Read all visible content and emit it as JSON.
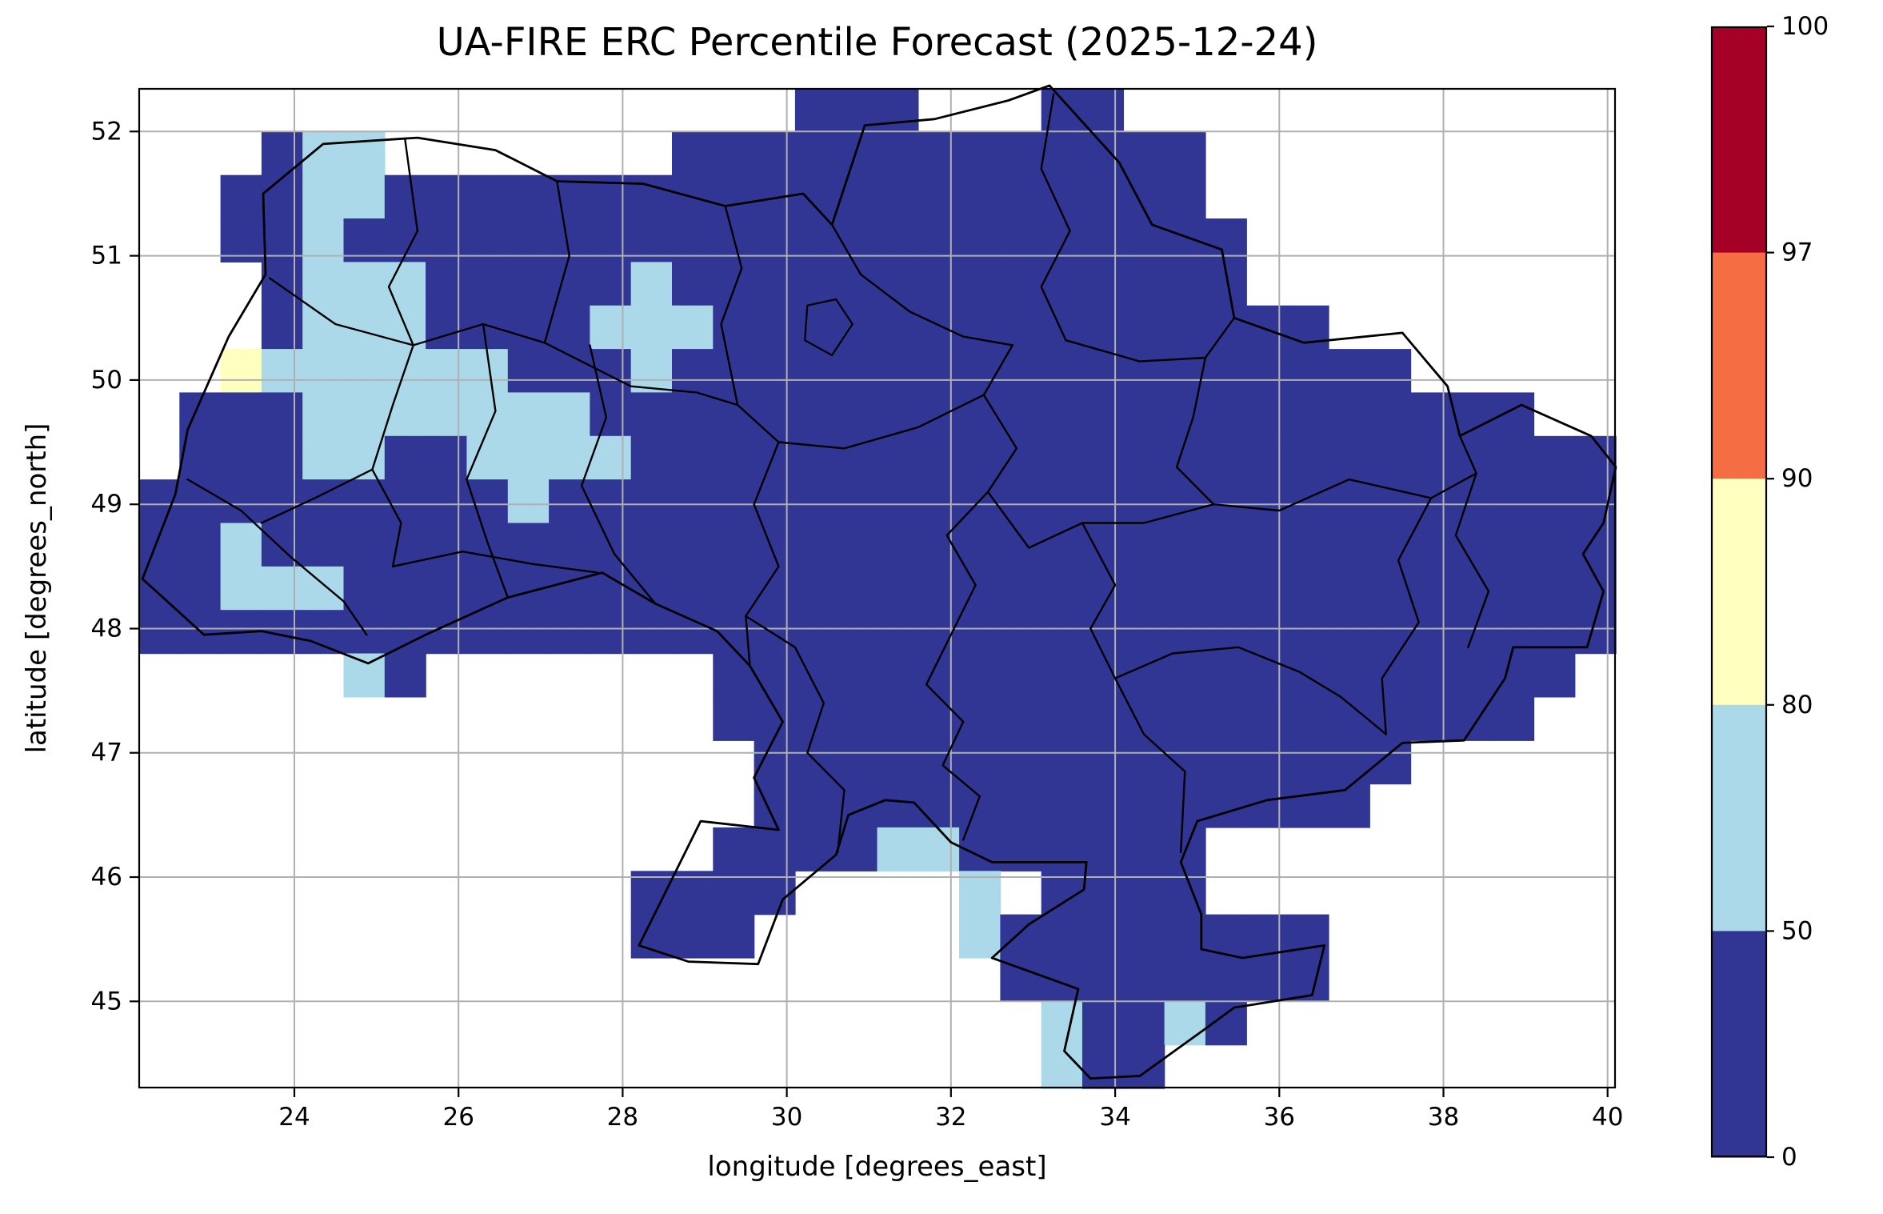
{
  "chart_data": {
    "type": "heatmap",
    "title": "UA-FIRE ERC Percentile Forecast (2025-12-24)",
    "xlabel": "longitude [degrees_east]",
    "ylabel": "latitude [degrees_north]",
    "xlim": [
      22.1,
      40.1
    ],
    "ylim": [
      44.3,
      52.35
    ],
    "xticks": [
      24,
      26,
      28,
      30,
      32,
      34,
      36,
      38,
      40
    ],
    "yticks": [
      45,
      46,
      47,
      48,
      49,
      50,
      51,
      52
    ],
    "grid": true,
    "grid_color": "#b0b0b0",
    "background": "#ffffff",
    "colorbar": {
      "boundaries": [
        0,
        50,
        80,
        90,
        97,
        100
      ],
      "tick_labels_top_to_bottom": [
        "100",
        "97",
        "90",
        "80",
        "50",
        "0"
      ],
      "segment_colors_top_to_bottom": [
        "#a50026",
        "#f46d43",
        "#ffffbf",
        "#abd9e9",
        "#313695"
      ]
    },
    "value_bins": {
      "B": "0-50 percentile",
      "L": "50-80 percentile",
      "Y": "80-90 percentile"
    },
    "bin_colors": {
      "B": "#313695",
      "L": "#abd9e9",
      "Y": "#ffffbf"
    },
    "grid_def": {
      "lon_min": 22.1,
      "lon_step": 0.5,
      "ncols": 36,
      "lat_max": 52.35,
      "lat_step": 0.35,
      "nrows": 23,
      "no_data_char": "."
    },
    "cell_rows": [
      "................BBB...BB............",
      "...BLL.......BBBBBBBBBBBBB..........",
      "..BBLLBBBBBBBBBBBBBBBBBBBB..........",
      "..BBLBBBBBBBBBBBBBBBBBBBBBB.........",
      "...BLLLBBBBBLBBBBBBBBBBBBBB.........",
      "...BLLLBBBBLLLBBBBBBBBBBBBBBB.......",
      "..YLLLLLLBBBLBBBBBBBBBBBBBBBBBB.....",
      ".BBBLLLLLLLBBBBBBBBBBBBBBBBBBBBBBB..",
      ".BBBLLBBLLLLBBBBBBBBBBBBBBBBBBBBBBBB",
      "BBBBBBBBBLBBBBBBBBBBBBBBBBBBBBBBBBBB",
      "BBLBBBBBBBBBBBBBBBBBBBBBBBBBBBBBBBBB",
      "BBLLLBBBBBBBBBBBBBBBBBBBBBBBBBBBBBBB",
      "BBBBBBBBBBBBBBBBBBBBBBBBBBBBBBBBBBBB",
      ".....LB.......BBBBBBBBBBBBBBBBBBBBB.",
      "..............BBBBBBBBBBBBBBBBBBBB..",
      "...............BBBBBBBBBBBBBBBB.....",
      "...............BBBBBBBBBBBBBBB......",
      "..............BBBBLLBBBBBB..........",
      "............BBBB....L.BBBB..........",
      "............BBB.....LBBBBBBBB.......",
      ".....................BBBBBBBB.......",
      "......................LBBLB.........",
      "......................LBB..........."
    ],
    "borders": {
      "country_outline": [
        [
          22.15,
          48.4
        ],
        [
          22.55,
          49.08
        ],
        [
          22.7,
          49.6
        ],
        [
          23.2,
          50.35
        ],
        [
          23.65,
          50.85
        ],
        [
          23.62,
          51.5
        ],
        [
          24.35,
          51.9
        ],
        [
          25.5,
          51.95
        ],
        [
          26.45,
          51.85
        ],
        [
          27.2,
          51.6
        ],
        [
          28.25,
          51.58
        ],
        [
          29.25,
          51.4
        ],
        [
          30.2,
          51.5
        ],
        [
          30.55,
          51.25
        ],
        [
          30.95,
          52.05
        ],
        [
          31.8,
          52.1
        ],
        [
          32.7,
          52.25
        ],
        [
          33.2,
          52.37
        ],
        [
          34.05,
          51.75
        ],
        [
          34.45,
          51.25
        ],
        [
          35.3,
          51.05
        ],
        [
          35.45,
          50.5
        ],
        [
          36.3,
          50.3
        ],
        [
          37.5,
          50.38
        ],
        [
          38.05,
          49.95
        ],
        [
          38.2,
          49.55
        ],
        [
          38.95,
          49.8
        ],
        [
          39.8,
          49.55
        ],
        [
          40.1,
          49.3
        ],
        [
          39.95,
          48.85
        ],
        [
          39.7,
          48.6
        ],
        [
          39.95,
          48.3
        ],
        [
          39.75,
          47.85
        ],
        [
          38.85,
          47.85
        ],
        [
          38.75,
          47.6
        ],
        [
          38.25,
          47.1
        ],
        [
          37.5,
          47.08
        ],
        [
          36.8,
          46.7
        ],
        [
          35.85,
          46.62
        ],
        [
          35.0,
          46.45
        ],
        [
          34.8,
          46.12
        ],
        [
          35.05,
          45.7
        ],
        [
          35.05,
          45.42
        ],
        [
          35.55,
          45.35
        ],
        [
          36.55,
          45.45
        ],
        [
          36.4,
          45.05
        ],
        [
          35.45,
          44.95
        ],
        [
          35.1,
          44.78
        ],
        [
          34.3,
          44.4
        ],
        [
          33.7,
          44.38
        ],
        [
          33.38,
          44.6
        ],
        [
          33.55,
          45.1
        ],
        [
          32.5,
          45.35
        ],
        [
          32.95,
          45.62
        ],
        [
          33.62,
          45.9
        ],
        [
          33.65,
          46.12
        ],
        [
          32.5,
          46.12
        ],
        [
          32.0,
          46.28
        ],
        [
          31.55,
          46.6
        ],
        [
          31.2,
          46.62
        ],
        [
          30.75,
          46.5
        ],
        [
          30.6,
          46.18
        ],
        [
          29.95,
          45.82
        ],
        [
          29.65,
          45.3
        ],
        [
          28.8,
          45.32
        ],
        [
          28.2,
          45.45
        ],
        [
          28.95,
          46.45
        ],
        [
          29.9,
          46.38
        ],
        [
          29.6,
          46.8
        ],
        [
          29.95,
          47.25
        ],
        [
          29.55,
          47.7
        ],
        [
          29.15,
          47.98
        ],
        [
          28.4,
          48.2
        ],
        [
          27.75,
          48.45
        ],
        [
          26.6,
          48.25
        ],
        [
          25.6,
          47.95
        ],
        [
          24.9,
          47.72
        ],
        [
          24.2,
          47.9
        ],
        [
          23.6,
          47.98
        ],
        [
          22.9,
          47.95
        ]
      ],
      "oblast_lines": [
        [
          [
            25.35,
            51.93
          ],
          [
            25.5,
            51.2
          ],
          [
            25.15,
            50.75
          ],
          [
            25.45,
            50.28
          ]
        ],
        [
          [
            23.7,
            50.82
          ],
          [
            24.5,
            50.45
          ],
          [
            25.45,
            50.28
          ],
          [
            26.3,
            50.45
          ],
          [
            27.05,
            50.3
          ]
        ],
        [
          [
            27.2,
            51.6
          ],
          [
            27.35,
            51.0
          ],
          [
            27.05,
            50.3
          ]
        ],
        [
          [
            27.05,
            50.3
          ],
          [
            28.1,
            49.95
          ],
          [
            28.9,
            49.9
          ],
          [
            29.4,
            49.8
          ]
        ],
        [
          [
            29.25,
            51.4
          ],
          [
            29.45,
            50.9
          ],
          [
            29.2,
            50.45
          ],
          [
            29.4,
            49.8
          ]
        ],
        [
          [
            30.55,
            51.25
          ],
          [
            30.9,
            50.85
          ],
          [
            31.5,
            50.55
          ],
          [
            32.15,
            50.35
          ],
          [
            32.75,
            50.28
          ]
        ],
        [
          [
            33.25,
            52.3
          ],
          [
            33.1,
            51.7
          ],
          [
            33.45,
            51.2
          ],
          [
            33.1,
            50.75
          ],
          [
            33.4,
            50.32
          ]
        ],
        [
          [
            33.4,
            50.32
          ],
          [
            34.3,
            50.15
          ],
          [
            35.1,
            50.18
          ],
          [
            35.45,
            50.5
          ]
        ],
        [
          [
            24.95,
            49.28
          ],
          [
            24.25,
            49.05
          ],
          [
            23.6,
            48.85
          ]
        ],
        [
          [
            22.7,
            49.2
          ],
          [
            23.35,
            48.95
          ],
          [
            23.95,
            48.58
          ],
          [
            24.6,
            48.22
          ],
          [
            24.88,
            47.95
          ]
        ],
        [
          [
            26.3,
            50.45
          ],
          [
            26.45,
            49.75
          ],
          [
            26.1,
            49.2
          ],
          [
            26.35,
            48.7
          ],
          [
            26.6,
            48.25
          ]
        ],
        [
          [
            24.95,
            49.28
          ],
          [
            25.3,
            48.85
          ],
          [
            25.2,
            48.5
          ]
        ],
        [
          [
            25.2,
            48.5
          ],
          [
            26.05,
            48.62
          ],
          [
            26.9,
            48.52
          ],
          [
            27.7,
            48.45
          ]
        ],
        [
          [
            27.6,
            50.28
          ],
          [
            27.8,
            49.7
          ],
          [
            27.5,
            49.15
          ],
          [
            27.9,
            48.6
          ],
          [
            28.4,
            48.2
          ]
        ],
        [
          [
            29.4,
            49.8
          ],
          [
            29.9,
            49.5
          ],
          [
            29.6,
            49.0
          ],
          [
            29.9,
            48.5
          ],
          [
            29.5,
            48.1
          ],
          [
            29.55,
            47.7
          ]
        ],
        [
          [
            29.9,
            49.5
          ],
          [
            30.7,
            49.45
          ],
          [
            31.6,
            49.62
          ],
          [
            32.4,
            49.88
          ],
          [
            32.75,
            50.28
          ]
        ],
        [
          [
            32.4,
            49.88
          ],
          [
            32.8,
            49.45
          ],
          [
            32.45,
            49.1
          ]
        ],
        [
          [
            32.45,
            49.1
          ],
          [
            31.95,
            48.75
          ],
          [
            32.3,
            48.35
          ],
          [
            32.0,
            47.95
          ]
        ],
        [
          [
            35.1,
            50.18
          ],
          [
            34.95,
            49.7
          ],
          [
            34.75,
            49.3
          ],
          [
            35.2,
            49.0
          ]
        ],
        [
          [
            35.2,
            49.0
          ],
          [
            34.35,
            48.85
          ],
          [
            33.6,
            48.85
          ],
          [
            32.95,
            48.65
          ],
          [
            32.45,
            49.1
          ]
        ],
        [
          [
            35.2,
            49.0
          ],
          [
            36.0,
            48.95
          ],
          [
            36.85,
            49.2
          ],
          [
            37.85,
            49.05
          ],
          [
            38.4,
            49.25
          ],
          [
            38.2,
            49.55
          ]
        ],
        [
          [
            38.4,
            49.25
          ],
          [
            38.15,
            48.75
          ],
          [
            38.55,
            48.3
          ],
          [
            38.3,
            47.85
          ]
        ],
        [
          [
            29.5,
            48.1
          ],
          [
            30.1,
            47.85
          ],
          [
            30.45,
            47.4
          ],
          [
            30.25,
            47.0
          ],
          [
            30.7,
            46.7
          ],
          [
            30.62,
            46.2
          ]
        ],
        [
          [
            32.0,
            47.95
          ],
          [
            31.7,
            47.55
          ],
          [
            32.15,
            47.25
          ],
          [
            31.9,
            46.9
          ],
          [
            32.35,
            46.65
          ],
          [
            32.15,
            46.3
          ]
        ],
        [
          [
            33.6,
            48.85
          ],
          [
            34.0,
            48.35
          ],
          [
            33.7,
            48.0
          ],
          [
            34.0,
            47.6
          ]
        ],
        [
          [
            34.0,
            47.6
          ],
          [
            34.7,
            47.8
          ],
          [
            35.5,
            47.85
          ],
          [
            36.25,
            47.65
          ],
          [
            36.75,
            47.45
          ],
          [
            37.3,
            47.15
          ]
        ],
        [
          [
            37.85,
            49.05
          ],
          [
            37.45,
            48.55
          ],
          [
            37.7,
            48.05
          ],
          [
            37.25,
            47.6
          ],
          [
            37.3,
            47.15
          ]
        ],
        [
          [
            34.0,
            47.6
          ],
          [
            34.35,
            47.15
          ],
          [
            34.85,
            46.85
          ],
          [
            34.8,
            46.2
          ]
        ],
        [
          [
            25.45,
            50.28
          ],
          [
            25.2,
            49.8
          ],
          [
            24.95,
            49.28
          ]
        ]
      ],
      "city_loops": [
        [
          [
            30.25,
            50.6
          ],
          [
            30.6,
            50.65
          ],
          [
            30.8,
            50.45
          ],
          [
            30.55,
            50.2
          ],
          [
            30.22,
            50.32
          ],
          [
            30.25,
            50.6
          ]
        ]
      ]
    }
  }
}
